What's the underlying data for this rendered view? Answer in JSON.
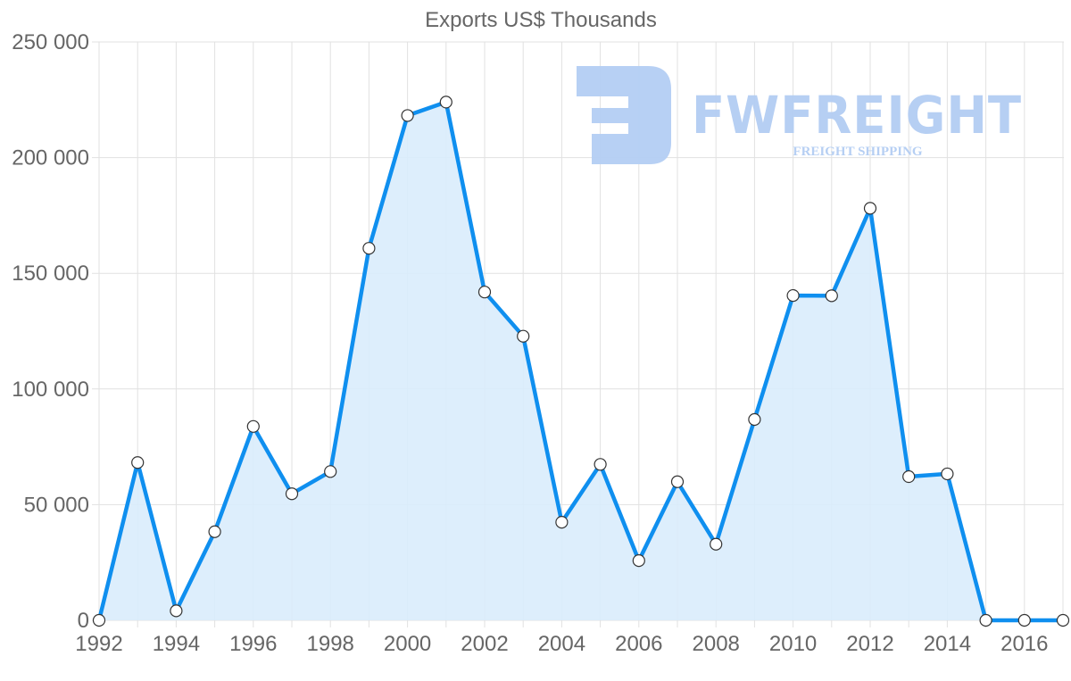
{
  "chart_data": {
    "type": "area",
    "title": "Exports US$ Thousands",
    "xlabel": "",
    "ylabel": "",
    "ylim": [
      0,
      250000
    ],
    "yticks": [
      0,
      50000,
      100000,
      150000,
      200000,
      250000
    ],
    "ytick_labels": [
      "0",
      "50 000",
      "100 000",
      "150 000",
      "200 000",
      "250 000"
    ],
    "xtick_labels": [
      "1992",
      "1994",
      "1996",
      "1998",
      "2000",
      "2002",
      "2004",
      "2006",
      "2008",
      "2010",
      "2012",
      "2014",
      "2016"
    ],
    "grid": true,
    "legend": null,
    "x": [
      1992,
      1993,
      1994,
      1995,
      1996,
      1997,
      1998,
      1999,
      2000,
      2001,
      2002,
      2003,
      2004,
      2005,
      2006,
      2007,
      2008,
      2009,
      2010,
      2011,
      2012,
      2013,
      2014,
      2015,
      2016,
      2017
    ],
    "series": [
      {
        "name": "Exports US$ Thousands",
        "color": "#0f8fef",
        "fill": "#d9ecfc",
        "values": [
          0,
          68200,
          4100,
          38300,
          83800,
          54700,
          64300,
          160800,
          218200,
          224000,
          141900,
          122800,
          42400,
          67400,
          25800,
          59900,
          32900,
          86800,
          140400,
          140300,
          178100,
          62100,
          63300,
          0,
          0,
          0
        ]
      }
    ]
  },
  "watermark": {
    "brand": "FWFREIGHT",
    "tagline": "FREIGHT SHIPPING",
    "color": "#b3cdf3"
  }
}
